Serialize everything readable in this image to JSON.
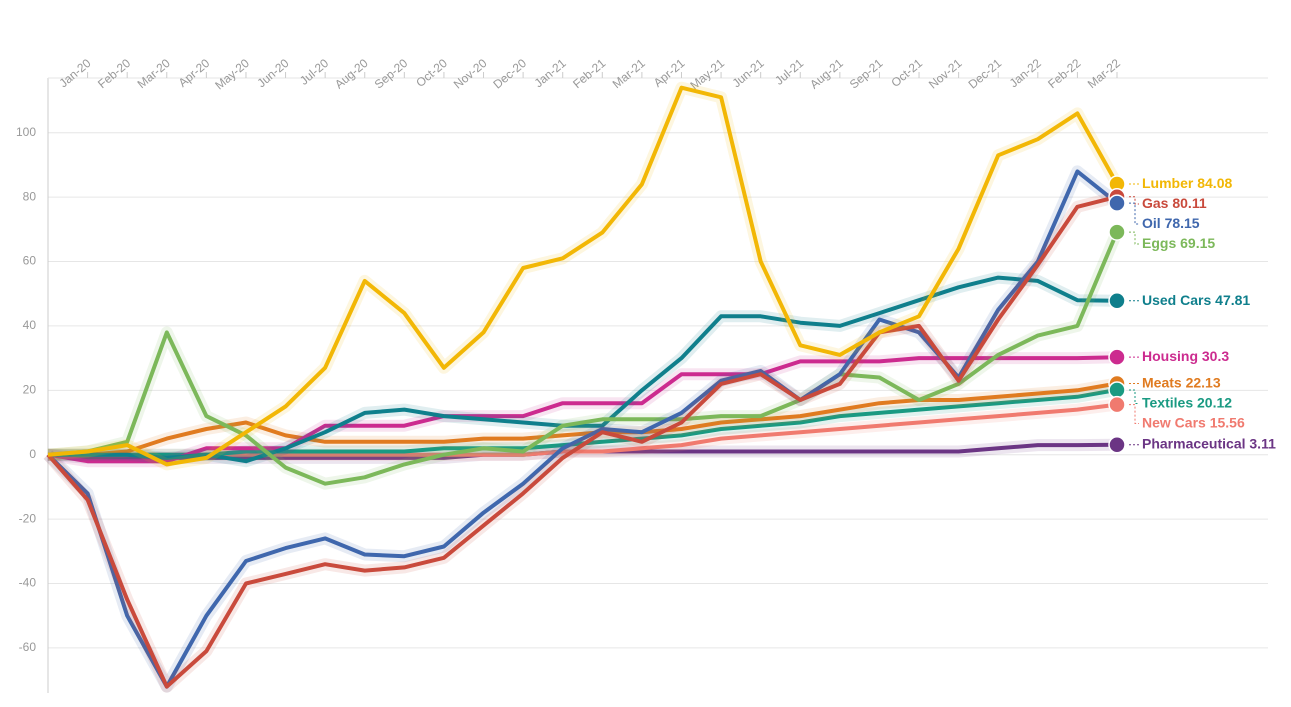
{
  "chart_data": {
    "type": "line",
    "categories": [
      null,
      "Jan-20",
      "Feb-20",
      "Mar-20",
      "Apr-20",
      "May-20",
      "Jun-20",
      "Jul-20",
      "Aug-20",
      "Sep-20",
      "Oct-20",
      "Nov-20",
      "Dec-20",
      "Jan-21",
      "Feb-21",
      "Mar-21",
      "Apr-21",
      "May-21",
      "Jun-21",
      "Jul-21",
      "Aug-21",
      "Sep-21",
      "Oct-21",
      "Nov-21",
      "Dec-21",
      "Jan-22",
      "Feb-22",
      "Mar-22"
    ],
    "ylim": [
      -74,
      117
    ],
    "yticks": [
      -60,
      -40,
      -20,
      0,
      20,
      40,
      60,
      80,
      100
    ],
    "grid": true,
    "series": [
      {
        "name": "Lumber",
        "color": "#f2b705",
        "values": [
          0,
          1,
          3,
          -3,
          -1,
          7,
          15,
          27,
          54,
          44,
          27,
          38,
          58,
          61,
          69,
          84,
          114,
          111,
          60,
          34,
          31,
          38,
          43,
          64,
          93,
          98,
          106,
          84.08
        ]
      },
      {
        "name": "Gas",
        "color": "#c94a3c",
        "values": [
          0,
          -14,
          -45,
          -72,
          -61,
          -40,
          -37,
          -34,
          -36,
          -35,
          -32,
          -22,
          -12,
          -1,
          7,
          4,
          10,
          22,
          25,
          17,
          22,
          38,
          40,
          23,
          42,
          59,
          77,
          80.11
        ]
      },
      {
        "name": "Oil",
        "color": "#3f67ad",
        "values": [
          0,
          -12,
          -50,
          -72,
          -50,
          -33,
          -29,
          -26,
          -31,
          -31.5,
          -28.5,
          -18,
          -9,
          2,
          8,
          7,
          13,
          23,
          26,
          17,
          25,
          42,
          38,
          24,
          45,
          60,
          88,
          78.15
        ]
      },
      {
        "name": "Eggs",
        "color": "#7cb85a",
        "values": [
          0,
          1,
          4,
          38,
          12,
          6,
          -4,
          -9,
          -7,
          -3,
          0,
          2,
          1,
          9,
          11,
          11,
          11,
          12,
          12,
          17,
          25,
          24,
          17,
          22,
          31,
          37,
          40,
          69.15
        ]
      },
      {
        "name": "Used Cars",
        "color": "#0f7f8c",
        "values": [
          0,
          0,
          0,
          -1,
          0,
          -2,
          2,
          7,
          13,
          14,
          12,
          11,
          10,
          9,
          9,
          20,
          30,
          43,
          43,
          41,
          40,
          44,
          48,
          52,
          55,
          54,
          48,
          47.81
        ]
      },
      {
        "name": "Housing",
        "color": "#cc2b8f",
        "values": [
          0,
          -2,
          -2,
          -2,
          2,
          2,
          2,
          9,
          9,
          9,
          12,
          12,
          12,
          16,
          16,
          16,
          25,
          25,
          25,
          29,
          29,
          29,
          30,
          30,
          30,
          30,
          30,
          30.3
        ]
      },
      {
        "name": "Meats",
        "color": "#e07b20",
        "values": [
          0,
          0,
          1,
          5,
          8,
          10,
          6,
          4,
          4,
          4,
          4,
          5,
          5,
          6,
          7,
          7,
          8,
          10,
          11,
          12,
          14,
          16,
          17,
          17,
          18,
          19,
          20,
          22.13
        ]
      },
      {
        "name": "Textiles",
        "color": "#1a9a82",
        "values": [
          0,
          0,
          0,
          0,
          0,
          1,
          1,
          1,
          1,
          1,
          2,
          2,
          2,
          3,
          4,
          5,
          6,
          8,
          9,
          10,
          12,
          13,
          14,
          15,
          16,
          17,
          18,
          20.12
        ]
      },
      {
        "name": "New Cars",
        "color": "#f07a6f",
        "values": [
          0,
          0,
          0,
          0,
          0,
          0,
          0,
          0,
          0,
          0,
          0,
          0,
          0,
          1,
          1,
          2,
          3,
          5,
          6,
          7,
          8,
          9,
          10,
          11,
          12,
          13,
          14,
          15.56
        ]
      },
      {
        "name": "Pharmaceutical",
        "color": "#6b3584",
        "values": [
          0,
          -1,
          -1,
          -1,
          -1,
          -1,
          -1,
          -1,
          -1,
          -1,
          -1,
          0,
          0,
          1,
          1,
          1,
          1,
          1,
          1,
          1,
          1,
          1,
          1,
          1,
          2,
          3,
          3,
          3.11
        ]
      }
    ]
  }
}
